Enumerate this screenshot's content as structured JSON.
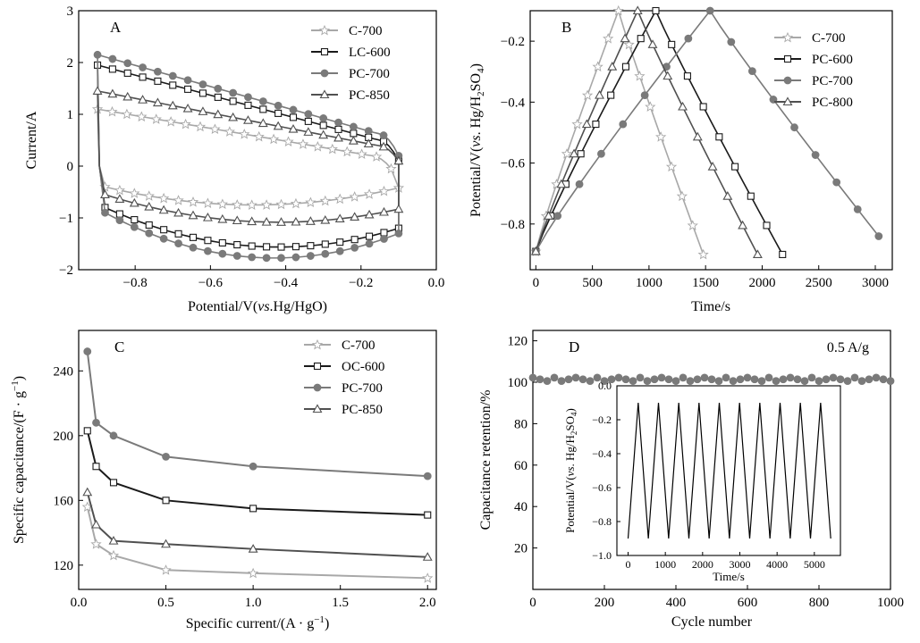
{
  "chart_data": [
    {
      "panel": "A",
      "type": "line",
      "xlabel": "Potential/V(vs.Hg/HgO)",
      "ylabel": "Current/A",
      "xlim": [
        -0.95,
        0.0
      ],
      "ylim": [
        -2,
        3
      ],
      "xticks": [
        "−0.8",
        "−0.6",
        "−0.4",
        "−0.2",
        "0.0"
      ],
      "yticks": [
        "−2",
        "−1",
        "0",
        "1",
        "2",
        "3"
      ],
      "legend_position": "top-right",
      "colors": {
        "C-700": "#a8a8a8",
        "LC-600": "#1a1a1a",
        "PC-700": "#7a7a7a",
        "PC-850": "#505050"
      },
      "series": [
        {
          "name": "C-700",
          "marker": "star",
          "upper": {
            "start": [
              -0.9,
              1.1
            ],
            "end": [
              -0.12,
              -0.05
            ]
          },
          "lower": {
            "start": [
              -0.88,
              -0.4
            ],
            "min": [
              -0.6,
              -0.72
            ],
            "end": [
              -0.1,
              -0.42
            ]
          }
        },
        {
          "name": "LC-600",
          "marker": "square",
          "upper": {
            "start": [
              -0.9,
              1.95
            ],
            "end": [
              -0.1,
              0.1
            ]
          },
          "lower": {
            "start": [
              -0.88,
              -0.8
            ],
            "min": [
              -0.55,
              -1.5
            ],
            "end": [
              -0.1,
              -1.2
            ]
          }
        },
        {
          "name": "PC-700",
          "marker": "circle",
          "upper": {
            "start": [
              -0.9,
              2.15
            ],
            "end": [
              -0.1,
              0.2
            ]
          },
          "lower": {
            "start": [
              -0.88,
              -0.9
            ],
            "min": [
              -0.6,
              -1.65
            ],
            "end": [
              -0.1,
              -1.3
            ]
          }
        },
        {
          "name": "PC-850",
          "marker": "triangle",
          "upper": {
            "start": [
              -0.9,
              1.45
            ],
            "end": [
              -0.1,
              0.1
            ]
          },
          "lower": {
            "start": [
              -0.88,
              -0.55
            ],
            "min": [
              -0.6,
              -1.0
            ],
            "end": [
              -0.1,
              -0.83
            ]
          }
        }
      ]
    },
    {
      "panel": "B",
      "type": "line",
      "xlabel": "Time/s",
      "ylabel": "Potential/V(vs. Hg/H2SO4)",
      "xlim": [
        -50,
        3150
      ],
      "ylim": [
        -0.95,
        -0.1
      ],
      "xticks": [
        "0",
        "500",
        "1000",
        "1500",
        "2000",
        "2500",
        "3000"
      ],
      "yticks": [
        "−0.8",
        "−0.6",
        "−0.4",
        "−0.2"
      ],
      "legend_position": "top-right",
      "colors": {
        "C-700": "#a8a8a8",
        "PC-600": "#1a1a1a",
        "PC-700": "#7a7a7a",
        "PC-800": "#505050"
      },
      "series": [
        {
          "name": "C-700",
          "marker": "star",
          "start": [
            0,
            -0.89
          ],
          "peak": [
            730,
            -0.1
          ],
          "end": [
            1480,
            -0.9
          ]
        },
        {
          "name": "PC-600",
          "marker": "square",
          "start": [
            0,
            -0.89
          ],
          "peak": [
            1060,
            -0.1
          ],
          "end": [
            2180,
            -0.9
          ]
        },
        {
          "name": "PC-700",
          "marker": "circle",
          "start": [
            0,
            -0.89
          ],
          "peak": [
            1540,
            -0.1
          ],
          "end": [
            3030,
            -0.84
          ]
        },
        {
          "name": "PC-800",
          "marker": "triangle",
          "start": [
            0,
            -0.89
          ],
          "peak": [
            900,
            -0.1
          ],
          "end": [
            1960,
            -0.9
          ]
        }
      ]
    },
    {
      "panel": "C",
      "type": "line",
      "xlabel": "Specific current/(A · g⁻¹)",
      "ylabel": "Specific capacitance/(F · g⁻¹)",
      "xlim": [
        0.0,
        2.05
      ],
      "ylim": [
        105,
        265
      ],
      "xticks": [
        "0.0",
        "0.5",
        "1.0",
        "1.5",
        "2.0"
      ],
      "yticks": [
        "120",
        "160",
        "200",
        "240"
      ],
      "legend_position": "top-right",
      "x": [
        0.05,
        0.1,
        0.2,
        0.5,
        1.0,
        2.0
      ],
      "colors": {
        "C-700": "#a8a8a8",
        "OC-600": "#1a1a1a",
        "PC-700": "#7a7a7a",
        "PC-850": "#505050"
      },
      "series": [
        {
          "name": "C-700",
          "marker": "star",
          "values": [
            156,
            133,
            126,
            117,
            115,
            112
          ]
        },
        {
          "name": "OC-600",
          "marker": "square",
          "values": [
            203,
            181,
            171,
            160,
            155,
            151
          ]
        },
        {
          "name": "PC-700",
          "marker": "circle",
          "values": [
            252,
            208,
            200,
            187,
            181,
            175
          ]
        },
        {
          "name": "PC-850",
          "marker": "triangle",
          "values": [
            165,
            145,
            135,
            133,
            130,
            125
          ]
        }
      ]
    },
    {
      "panel": "D",
      "type": "scatter",
      "xlabel": "Cycle number",
      "ylabel": "Capacitance retention/%",
      "xlim": [
        0,
        1000
      ],
      "ylim": [
        0,
        125
      ],
      "xticks": [
        "0",
        "200",
        "400",
        "600",
        "800",
        "1000"
      ],
      "yticks": [
        "20",
        "40",
        "60",
        "80",
        "100",
        "120"
      ],
      "annotation": "0.5 A/g",
      "retention_level": 101,
      "color": "#7a7a7a",
      "inset": {
        "type": "line",
        "xlabel": "Time/s",
        "ylabel": "Potential/V(vs. Hg/H2SO4)",
        "xlim": [
          -300,
          5700
        ],
        "ylim": [
          -1.0,
          0.0
        ],
        "xticks": [
          "0",
          "1000",
          "2000",
          "3000",
          "4000",
          "5000"
        ],
        "yticks": [
          "0.0",
          "−0.2",
          "−0.4",
          "−0.6",
          "−0.8",
          "−1.0"
        ],
        "cycles": 10,
        "t_start": 0,
        "t_end": 5440,
        "v_min": -0.9,
        "v_max": -0.1
      }
    }
  ],
  "labels": {
    "A": "A",
    "B": "B",
    "C": "C",
    "D": "D",
    "ylabelB_main": "Potential/V(",
    "ylabelB_vs": "vs",
    "ylabelB_rest": ". Hg/H",
    "ylabelB_2": "2",
    "ylabelB_SO": "SO",
    "ylabelB_4": "4",
    "ylabelB_close": ")",
    "xlabelA_main": "Potential/V(",
    "xlabelA_vs": "vs",
    "xlabelA_rest": ".Hg/HgO)",
    "ylabelC_main": "Specific capacitance/(F · g",
    "ylabelC_sup": "−1",
    "ylabelC_close": ")",
    "xlabelC_main": "Specific current/(A · g",
    "xlabelC_sup": "−1",
    "xlabelC_close": ")"
  }
}
